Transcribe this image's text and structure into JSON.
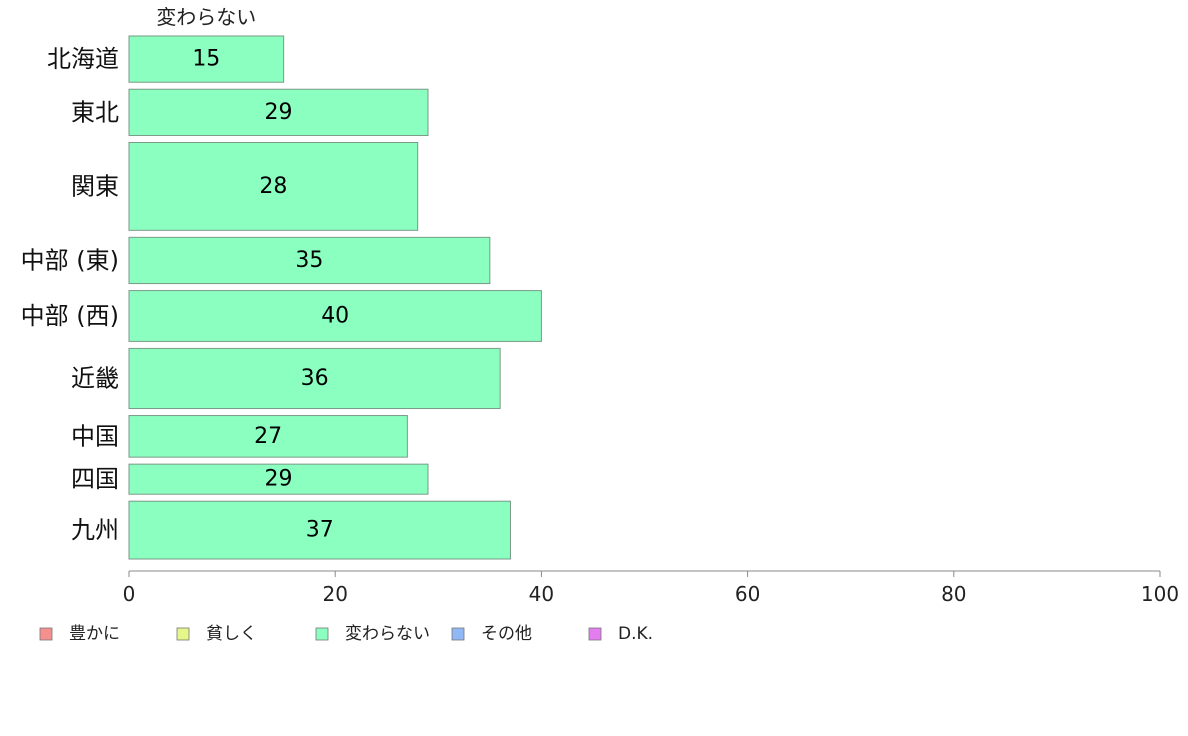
{
  "chart_data": {
    "type": "bar",
    "orientation": "horizontal",
    "stacked": true,
    "segment_header": "変わらない",
    "categories": [
      "北海道",
      "東北",
      "関東",
      "中部 (東)",
      "中部 (西)",
      "近畿",
      "中国",
      "四国",
      "九州"
    ],
    "series": [
      {
        "name": "豊かに",
        "color": "#f4918f",
        "values": [
          0,
          0,
          0,
          0,
          0,
          0,
          0,
          0,
          0
        ]
      },
      {
        "name": "貧しく",
        "color": "#e6f78a",
        "values": [
          0,
          0,
          0,
          0,
          0,
          0,
          0,
          0,
          0
        ]
      },
      {
        "name": "変わらない",
        "color": "#8affbf",
        "values": [
          15,
          29,
          28,
          35,
          40,
          36,
          27,
          29,
          37
        ]
      },
      {
        "name": "その他",
        "color": "#8fb8f5",
        "values": [
          0,
          0,
          0,
          0,
          0,
          0,
          0,
          0,
          0
        ]
      },
      {
        "name": "D.K.",
        "color": "#e47ef0",
        "values": [
          0,
          0,
          0,
          0,
          0,
          0,
          0,
          0,
          0
        ]
      }
    ],
    "bar_weights": [
      1.0,
      1.0,
      1.9,
      1.0,
      1.1,
      1.3,
      0.9,
      0.65,
      1.25
    ],
    "xlim": [
      0,
      100
    ],
    "xticks": [
      0,
      20,
      40,
      60,
      80,
      100
    ],
    "grid": false,
    "legend_position": "bottom"
  }
}
